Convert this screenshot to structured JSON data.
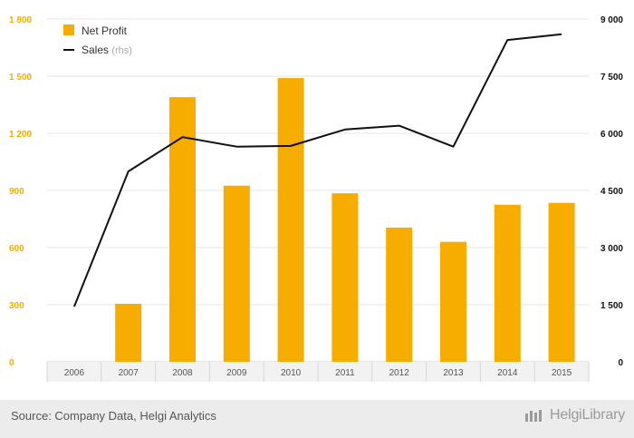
{
  "chart_data": {
    "type": "bar",
    "categories": [
      "2006",
      "2007",
      "2008",
      "2009",
      "2010",
      "2011",
      "2012",
      "2013",
      "2014",
      "2015"
    ],
    "series": [
      {
        "name": "Net Profit",
        "type": "bar",
        "axis": "left",
        "color": "#f7ac00",
        "values": [
          0,
          305,
          1390,
          925,
          1490,
          885,
          705,
          630,
          825,
          835
        ]
      },
      {
        "name": "Sales",
        "name_suffix": "(rhs)",
        "type": "line",
        "axis": "right",
        "color": "#111111",
        "values": [
          1450,
          5000,
          5900,
          5650,
          5670,
          6100,
          6200,
          5650,
          8450,
          8600
        ]
      }
    ],
    "y_left": {
      "min": 0,
      "max": 1800,
      "ticks": [
        0,
        300,
        600,
        900,
        1200,
        1500,
        1800
      ],
      "tick_labels": [
        "0",
        "300",
        "600",
        "900",
        "1 200",
        "1 500",
        "1 800"
      ],
      "color": "#f7ac00"
    },
    "y_right": {
      "min": 0,
      "max": 9000,
      "ticks": [
        0,
        1500,
        3000,
        4500,
        6000,
        7500,
        9000
      ],
      "tick_labels": [
        "0",
        "1 500",
        "3 000",
        "4 500",
        "6 000",
        "7 500",
        "9 000"
      ],
      "color": "#111111"
    },
    "grid": true,
    "legend": "top-left"
  },
  "footer": {
    "source": "Source: Company Data, Helgi Analytics",
    "brand": "HelgiLibrary"
  }
}
